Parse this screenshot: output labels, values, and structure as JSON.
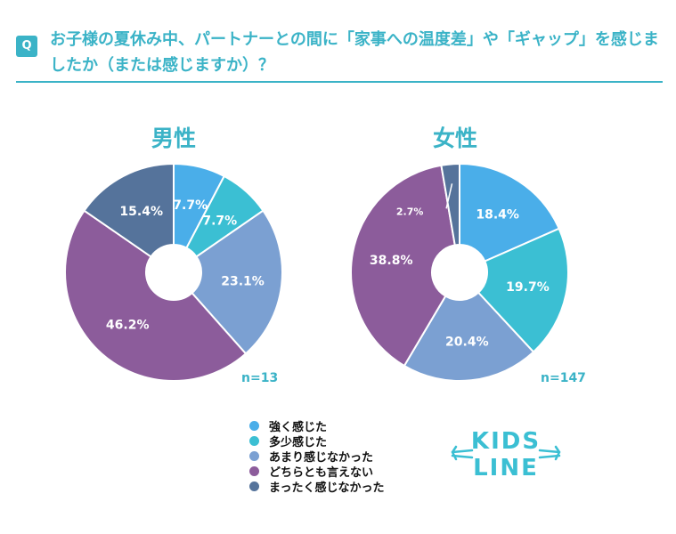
{
  "question": {
    "badge": "Q",
    "text": "お子様の夏休み中、パートナーとの間に「家事への温度差」や「ギャップ」を感じましたか（または感じますか）？"
  },
  "colors": [
    "#4aaee9",
    "#3bbfd3",
    "#7ba0d2",
    "#8c5c9b",
    "#55739b"
  ],
  "legend": [
    "強く感じた",
    "多少感じた",
    "あまり感じなかった",
    "どちらとも言えない",
    "まったく感じなかった"
  ],
  "logo": {
    "line1": "KIDS",
    "line2": "LINE"
  },
  "chart_data": [
    {
      "type": "pie",
      "title": "男性",
      "n_label": "n=13",
      "categories": [
        "強く感じた",
        "多少感じた",
        "あまり感じなかった",
        "どちらとも言えない",
        "まったく感じなかった"
      ],
      "values": [
        7.7,
        7.7,
        23.1,
        46.2,
        15.4
      ],
      "labels": [
        "7.7%",
        "7.7%",
        "23.1%",
        "46.2%",
        "15.4%"
      ]
    },
    {
      "type": "pie",
      "title": "女性",
      "n_label": "n=147",
      "categories": [
        "強く感じた",
        "多少感じた",
        "あまり感じなかった",
        "どちらとも言えない",
        "まったく感じなかった"
      ],
      "values": [
        18.4,
        19.7,
        20.4,
        38.8,
        2.7
      ],
      "labels": [
        "18.4%",
        "19.7%",
        "20.4%",
        "38.8%",
        "2.7%"
      ]
    }
  ]
}
